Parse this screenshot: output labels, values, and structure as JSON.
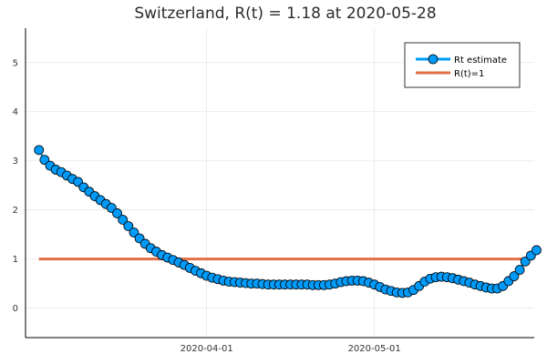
{
  "chart_data": {
    "type": "line",
    "title": "Switzerland, R(t) = 1.18 at 2020-05-28",
    "xlabel": "",
    "ylabel": "",
    "x_start": "2020-03-02",
    "x_end": "2020-05-28",
    "x_ticks": [
      "2020-04-01",
      "2020-05-01"
    ],
    "ylim": [
      -0.6,
      5.7
    ],
    "y_ticks": [
      "0",
      "1",
      "2",
      "3",
      "4",
      "5"
    ],
    "grid": true,
    "legend_position": "top-right",
    "series": [
      {
        "name": "Rt estimate",
        "color": "#009af9",
        "marker": "circle",
        "values": [
          3.22,
          3.02,
          2.9,
          2.82,
          2.77,
          2.7,
          2.63,
          2.57,
          2.46,
          2.37,
          2.28,
          2.2,
          2.12,
          2.04,
          1.93,
          1.8,
          1.67,
          1.54,
          1.42,
          1.31,
          1.22,
          1.15,
          1.08,
          1.03,
          0.98,
          0.93,
          0.88,
          0.82,
          0.76,
          0.71,
          0.66,
          0.62,
          0.59,
          0.56,
          0.54,
          0.53,
          0.52,
          0.51,
          0.5,
          0.5,
          0.49,
          0.48,
          0.48,
          0.48,
          0.48,
          0.48,
          0.48,
          0.48,
          0.48,
          0.47,
          0.47,
          0.47,
          0.48,
          0.5,
          0.53,
          0.55,
          0.56,
          0.56,
          0.55,
          0.52,
          0.48,
          0.43,
          0.38,
          0.35,
          0.32,
          0.31,
          0.32,
          0.37,
          0.45,
          0.54,
          0.6,
          0.63,
          0.64,
          0.63,
          0.61,
          0.58,
          0.55,
          0.52,
          0.48,
          0.45,
          0.42,
          0.4,
          0.4,
          0.45,
          0.55,
          0.65,
          0.78,
          0.95,
          1.07,
          1.18
        ]
      },
      {
        "name": "R(t)=1",
        "color": "#e26f46",
        "marker": "none",
        "values": [
          1,
          1
        ]
      }
    ]
  }
}
